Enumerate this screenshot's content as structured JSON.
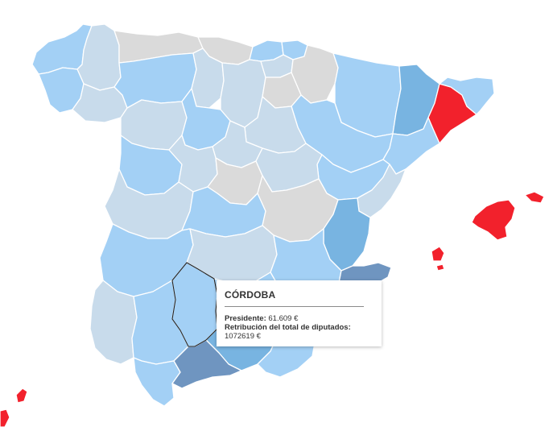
{
  "colors": {
    "none": "#dadada",
    "light": "#c8dbeb",
    "medium": "#a3d0f5",
    "strong": "#78b4e1",
    "darker": "#6f95c0",
    "max": "#f2212c",
    "outline": "#222222"
  },
  "provinces": [
    {
      "name": "A Coruña",
      "level": "medium"
    },
    {
      "name": "Lugo",
      "level": "light"
    },
    {
      "name": "Asturias",
      "level": "none"
    },
    {
      "name": "Cantabria",
      "level": "none"
    },
    {
      "name": "Vizcaya",
      "level": "medium"
    },
    {
      "name": "Guipúzcoa",
      "level": "medium"
    },
    {
      "name": "Pontevedra",
      "level": "medium"
    },
    {
      "name": "Ourense",
      "level": "light"
    },
    {
      "name": "León",
      "level": "medium"
    },
    {
      "name": "Palencia",
      "level": "light"
    },
    {
      "name": "Burgos",
      "level": "light"
    },
    {
      "name": "Álava",
      "level": "light"
    },
    {
      "name": "Navarra",
      "level": "none"
    },
    {
      "name": "La Rioja",
      "level": "none"
    },
    {
      "name": "Huesca",
      "level": "medium"
    },
    {
      "name": "Lleida",
      "level": "strong"
    },
    {
      "name": "Barcelona",
      "level": "max"
    },
    {
      "name": "Girona",
      "level": "medium"
    },
    {
      "name": "Zamora",
      "level": "light"
    },
    {
      "name": "Valladolid",
      "level": "medium"
    },
    {
      "name": "Soria",
      "level": "light"
    },
    {
      "name": "Zaragoza",
      "level": "medium"
    },
    {
      "name": "Tarragona",
      "level": "medium"
    },
    {
      "name": "Salamanca",
      "level": "medium"
    },
    {
      "name": "Ávila",
      "level": "light"
    },
    {
      "name": "Segovia",
      "level": "light"
    },
    {
      "name": "Madrid",
      "level": "none"
    },
    {
      "name": "Guadalajara",
      "level": "light"
    },
    {
      "name": "Teruel",
      "level": "medium"
    },
    {
      "name": "Castellón",
      "level": "light"
    },
    {
      "name": "Cáceres",
      "level": "light"
    },
    {
      "name": "Toledo",
      "level": "medium"
    },
    {
      "name": "Cuenca",
      "level": "none"
    },
    {
      "name": "Valencia",
      "level": "strong"
    },
    {
      "name": "Badajoz",
      "level": "medium"
    },
    {
      "name": "Ciudad Real",
      "level": "light"
    },
    {
      "name": "Albacete",
      "level": "medium"
    },
    {
      "name": "Alicante",
      "level": "darker"
    },
    {
      "name": "Huelva",
      "level": "light"
    },
    {
      "name": "Sevilla",
      "level": "medium"
    },
    {
      "name": "Córdoba",
      "level": "medium"
    },
    {
      "name": "Jaén",
      "level": "medium"
    },
    {
      "name": "Granada",
      "level": "strong"
    },
    {
      "name": "Almería",
      "level": "medium"
    },
    {
      "name": "Murcia",
      "level": "medium"
    },
    {
      "name": "Cádiz",
      "level": "medium"
    },
    {
      "name": "Málaga",
      "level": "darker"
    },
    {
      "name": "Mallorca",
      "level": "max"
    },
    {
      "name": "Menorca",
      "level": "max"
    },
    {
      "name": "Ibiza",
      "level": "max"
    },
    {
      "name": "Formentera",
      "level": "max"
    },
    {
      "name": "Lanzarote",
      "level": "max"
    },
    {
      "name": "Fuerteventura",
      "level": "max"
    }
  ],
  "tooltip": {
    "title": "CÓRDOBA",
    "presidente_label": "Presidente:",
    "presidente_value": "61.609 €",
    "retribucion_label": "Retribución del total de diputados:",
    "retribucion_value": "1072619 €"
  }
}
